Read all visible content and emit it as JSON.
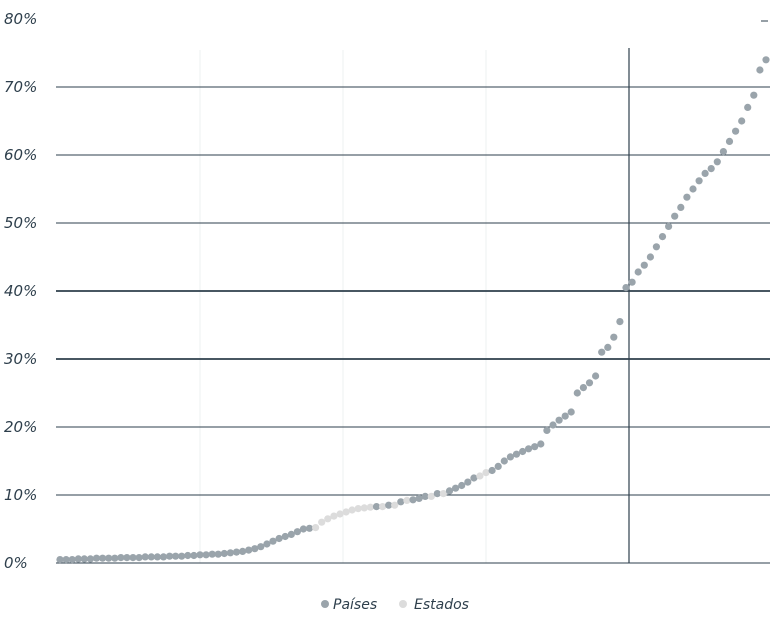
{
  "chart_data": {
    "type": "scatter",
    "title": "",
    "xlabel": "",
    "ylabel": "",
    "y_unit": "%",
    "ylim": [
      0,
      80
    ],
    "y_ticks": [
      0,
      10,
      20,
      30,
      40,
      50,
      60,
      70,
      80
    ],
    "y_tick_labels": [
      "0%",
      "10%",
      "20%",
      "30%",
      "40%",
      "50%",
      "60%",
      "70%",
      "80%"
    ],
    "grid": true,
    "x_axis": "rank (sorted ascending), no tick labels",
    "legend_position": "bottom-center",
    "colors": {
      "paises": "#9aa4ab",
      "estados": "#dcdcdc",
      "axis": "#2e3f4c"
    },
    "series": [
      {
        "name": "Países",
        "values": [
          0.5,
          0.5,
          0.5,
          0.6,
          0.6,
          0.6,
          0.7,
          0.7,
          0.7,
          0.7,
          0.8,
          0.8,
          0.8,
          0.8,
          0.9,
          0.9,
          0.9,
          0.9,
          1.0,
          1.0,
          1.0,
          1.1,
          1.1,
          1.2,
          1.2,
          1.3,
          1.3,
          1.4,
          1.5,
          1.6,
          1.7,
          1.9,
          2.1,
          2.4,
          2.8,
          3.2,
          3.6,
          3.9,
          4.2,
          4.6,
          5.0,
          5.1,
          8.3,
          8.5,
          9.0,
          9.3,
          9.5,
          9.8,
          10.2,
          10.6,
          11.0,
          11.4,
          11.9,
          12.5,
          13.6,
          14.2,
          15.0,
          15.6,
          16.0,
          16.4,
          16.8,
          17.1,
          17.5,
          19.5,
          20.3,
          21.0,
          21.6,
          22.2,
          25.0,
          25.8,
          26.5,
          27.5,
          31.0,
          31.7,
          33.2,
          35.5,
          40.5,
          41.3,
          42.8,
          43.8,
          45.0,
          46.5,
          48.0,
          49.5,
          51.0,
          52.3,
          53.8,
          55.0,
          56.2,
          57.3,
          58.0,
          59.0,
          60.5,
          62.0,
          63.5,
          65.0,
          67.0,
          68.8,
          72.5,
          74.0
        ]
      },
      {
        "name": "Estados",
        "values": [
          5.2,
          6.0,
          6.5,
          6.9,
          7.2,
          7.5,
          7.8,
          8.0,
          8.1,
          8.2,
          8.3,
          8.5,
          9.2,
          9.8,
          10.2,
          12.8,
          13.3
        ]
      }
    ]
  },
  "legend": {
    "paises_label": "Países",
    "estados_label": "Estados"
  }
}
